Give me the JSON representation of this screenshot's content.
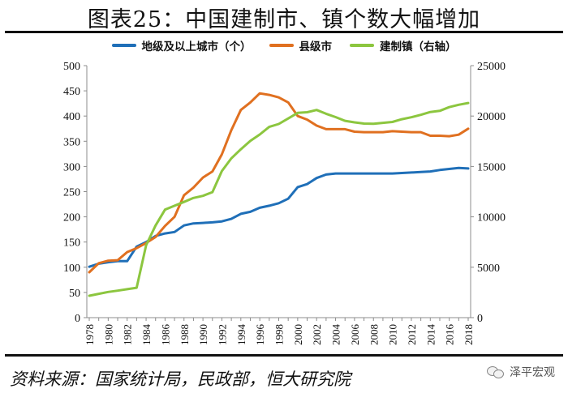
{
  "title": "图表25：中国建制市、镇个数大幅增加",
  "source": "资料来源：国家统计局，民政部，恒大研究院",
  "watermark": "泽平宏观",
  "chart_data": {
    "type": "line",
    "x": [
      1978,
      1979,
      1980,
      1981,
      1982,
      1983,
      1984,
      1985,
      1986,
      1987,
      1988,
      1989,
      1990,
      1991,
      1992,
      1993,
      1994,
      1995,
      1996,
      1997,
      1998,
      1999,
      2000,
      2001,
      2002,
      2003,
      2004,
      2005,
      2006,
      2007,
      2008,
      2009,
      2010,
      2011,
      2012,
      2013,
      2014,
      2015,
      2016,
      2017,
      2018
    ],
    "xticks": [
      1978,
      1980,
      1982,
      1984,
      1986,
      1988,
      1990,
      1992,
      1994,
      1996,
      1998,
      2000,
      2002,
      2004,
      2006,
      2008,
      2010,
      2012,
      2014,
      2016,
      2018
    ],
    "left_axis": {
      "ylim": [
        0,
        500
      ],
      "ticks": [
        0,
        50,
        100,
        150,
        200,
        250,
        300,
        350,
        400,
        450,
        500
      ]
    },
    "right_axis": {
      "ylim": [
        0,
        25000
      ],
      "ticks": [
        0,
        5000,
        10000,
        15000,
        20000,
        25000
      ]
    },
    "series": [
      {
        "name": "地级及以上城市（个）",
        "axis": "left",
        "color": "#1f6fb8",
        "values": [
          101,
          107,
          110,
          112,
          112,
          141,
          150,
          162,
          167,
          170,
          183,
          187,
          188,
          189,
          191,
          196,
          206,
          210,
          218,
          222,
          227,
          236,
          259,
          265,
          277,
          284,
          286,
          286,
          286,
          286,
          286,
          286,
          286,
          287,
          288,
          289,
          290,
          293,
          295,
          297,
          296
        ]
      },
      {
        "name": "县级市",
        "axis": "left",
        "color": "#e07020",
        "values": [
          90,
          108,
          113,
          114,
          130,
          138,
          148,
          160,
          182,
          200,
          243,
          258,
          278,
          290,
          324,
          372,
          412,
          427,
          445,
          442,
          437,
          427,
          400,
          393,
          381,
          374,
          374,
          374,
          369,
          368,
          368,
          368,
          370,
          369,
          368,
          368,
          361,
          361,
          360,
          363,
          375
        ]
      },
      {
        "name": "建制镇（右轴）",
        "axis": "right",
        "color": "#8cc63f",
        "values": [
          2173,
          2361,
          2550,
          2678,
          2819,
          2968,
          7186,
          9140,
          10717,
          11103,
          11481,
          11873,
          12084,
          12455,
          14539,
          15806,
          16702,
          17532,
          18171,
          18925,
          19216,
          19756,
          20312,
          20374,
          20601,
          20226,
          19892,
          19522,
          19369,
          19249,
          19234,
          19322,
          19410,
          19683,
          19881,
          20117,
          20401,
          20515,
          20883,
          21116,
          21297
        ]
      }
    ]
  }
}
